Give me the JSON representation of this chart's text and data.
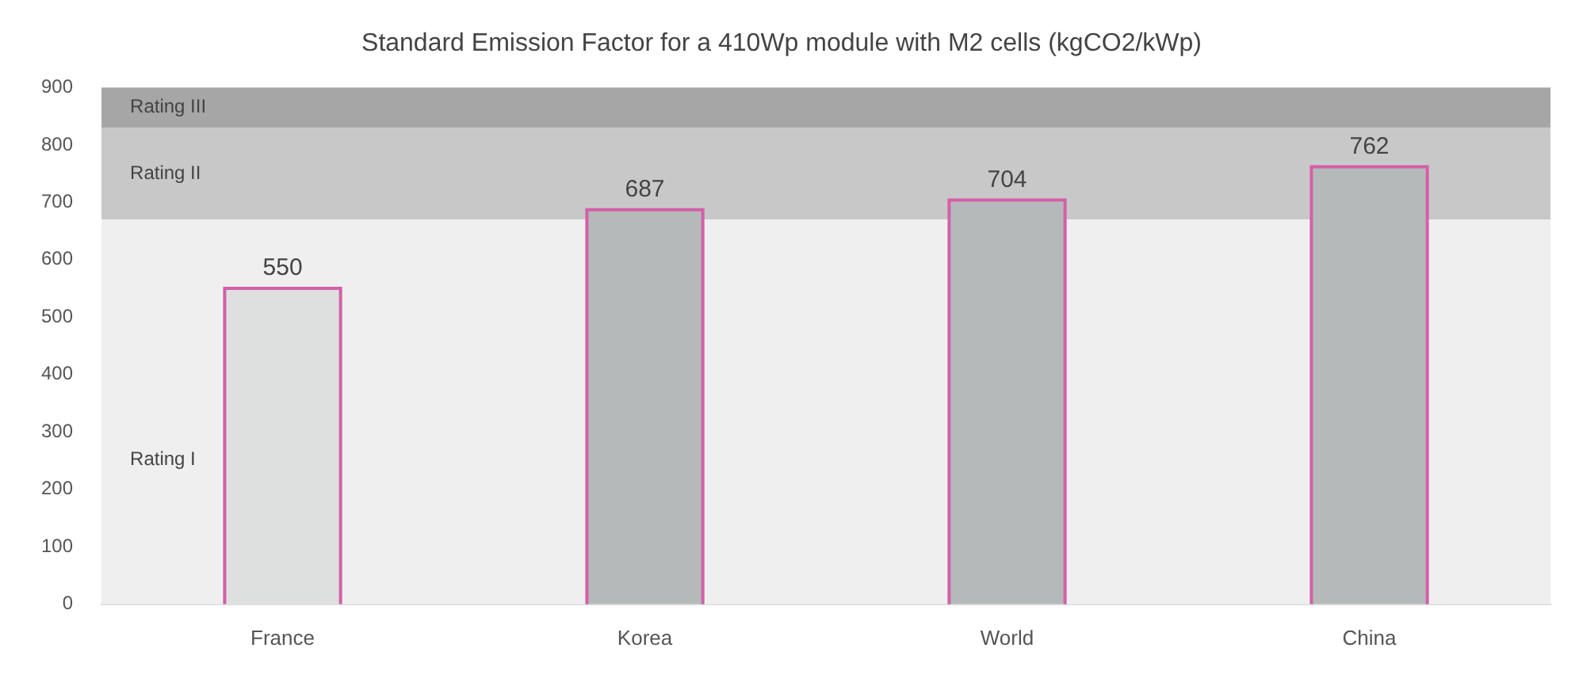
{
  "chart_data": {
    "type": "bar",
    "title": "Standard Emission Factor for a 410Wp module with M2 cells (kgCO2/kWp)",
    "categories": [
      "France",
      "Korea",
      "World",
      "China"
    ],
    "values": [
      550,
      687,
      704,
      762
    ],
    "colors": [
      "#dedfdf",
      "#b5b9b9",
      "#b5b9b9",
      "#b5b9b9"
    ],
    "ylim": [
      0,
      900
    ],
    "yticks": [
      0,
      100,
      200,
      300,
      400,
      500,
      600,
      700,
      800,
      900
    ],
    "grid": false,
    "legend": false,
    "data_labels": true,
    "bands": [
      {
        "axis": "y",
        "from": 0,
        "to": 670,
        "label": "Rating I",
        "color": "#efefef"
      },
      {
        "axis": "y",
        "from": 670,
        "to": 830,
        "label": "Rating II",
        "color": "#c8c8c8"
      },
      {
        "axis": "y",
        "from": 830,
        "to": 900,
        "label": "Rating III",
        "color": "#a6a6a6"
      }
    ]
  }
}
